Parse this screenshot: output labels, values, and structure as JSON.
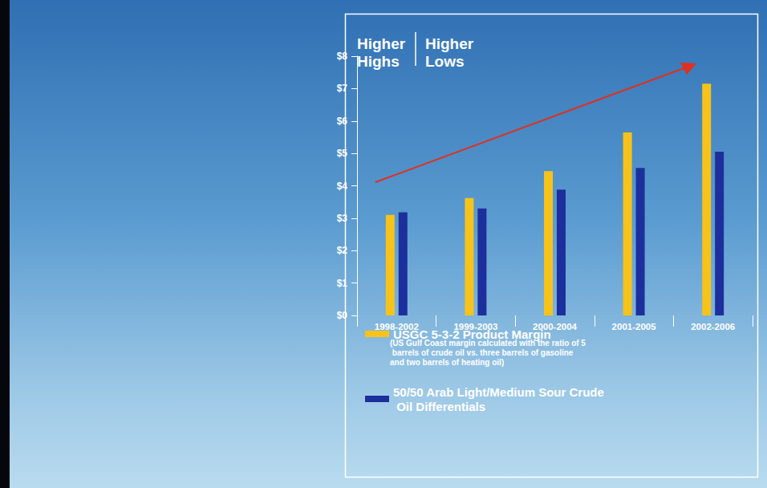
{
  "chart_data": {
    "type": "bar",
    "title": "Higher Highs",
    "subtitle": "Higher Lows",
    "categories": [
      "1998-2002",
      "1999-2003",
      "2000-2004",
      "2001-2005",
      "2002-2006"
    ],
    "series": [
      {
        "name": "USGC 5-3-2 Product Margin",
        "color": "#f7c21a",
        "values": [
          3.1,
          3.62,
          4.45,
          5.65,
          7.15
        ]
      },
      {
        "name": "50/50 Arab Light/Medium Sour Crude Oil Differentials",
        "color": "#1c2f9c",
        "values": [
          3.18,
          3.3,
          3.88,
          4.55,
          5.05
        ]
      }
    ],
    "annotations": [
      "(US Gulf Coast margin calculated with the ratio of 5 barrels of crude oil vs. three barrels of gasoline and two barrels of heating oil)"
    ],
    "ylim": [
      0,
      8
    ],
    "yticks": [
      {
        "value": 0,
        "label": "$0"
      },
      {
        "value": 1,
        "label": "$1"
      },
      {
        "value": 2,
        "label": "$2"
      },
      {
        "value": 3,
        "label": "$3"
      },
      {
        "value": 4,
        "label": "$4"
      },
      {
        "value": 5,
        "label": "$5"
      },
      {
        "value": 6,
        "label": "$6"
      },
      {
        "value": 7,
        "label": "$7"
      },
      {
        "value": 8,
        "label": "$8"
      }
    ],
    "grid": false,
    "legend": "bottom"
  }
}
